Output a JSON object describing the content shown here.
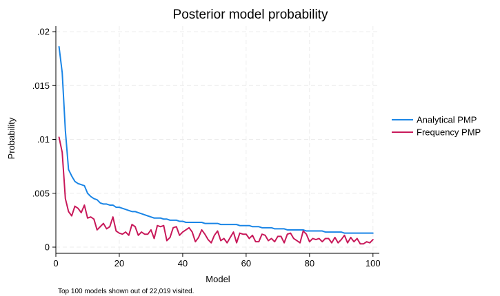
{
  "chart_data": {
    "type": "line",
    "title": "Posterior model probability",
    "xlabel": "Model",
    "ylabel": "Probability",
    "note": "Top 100 models shown out of 22,019 visited.",
    "xlim": [
      0,
      102
    ],
    "ylim": [
      0,
      0.02
    ],
    "xticks": [
      0,
      20,
      40,
      60,
      80,
      100
    ],
    "xtick_labels": [
      "0",
      "20",
      "40",
      "60",
      "80",
      "100"
    ],
    "yticks": [
      0,
      0.005,
      0.01,
      0.015,
      0.02
    ],
    "ytick_labels": [
      "0",
      ".005",
      ".01",
      ".015",
      ".02"
    ],
    "grid": true,
    "legend_position": "right",
    "series": [
      {
        "name": "Analytical PMP",
        "color": "#1a85e6",
        "values": [
          0.0186,
          0.0162,
          0.0108,
          0.0072,
          0.0066,
          0.0061,
          0.0059,
          0.0058,
          0.0057,
          0.005,
          0.0047,
          0.0045,
          0.0044,
          0.0041,
          0.004,
          0.004,
          0.0039,
          0.0039,
          0.0037,
          0.0037,
          0.0036,
          0.0035,
          0.0034,
          0.0033,
          0.0033,
          0.0032,
          0.0031,
          0.003,
          0.0029,
          0.0028,
          0.0027,
          0.0027,
          0.0027,
          0.0026,
          0.0026,
          0.0025,
          0.0025,
          0.0025,
          0.0024,
          0.0024,
          0.0023,
          0.0023,
          0.0023,
          0.0023,
          0.0023,
          0.0023,
          0.0022,
          0.0022,
          0.0022,
          0.0022,
          0.0022,
          0.0021,
          0.0021,
          0.0021,
          0.0021,
          0.0021,
          0.0021,
          0.002,
          0.002,
          0.002,
          0.002,
          0.0019,
          0.0019,
          0.0019,
          0.0018,
          0.0018,
          0.0018,
          0.0018,
          0.0017,
          0.0017,
          0.0017,
          0.0017,
          0.0016,
          0.0016,
          0.0016,
          0.0016,
          0.0016,
          0.0016,
          0.0015,
          0.0015,
          0.0015,
          0.0015,
          0.0015,
          0.0015,
          0.0014,
          0.0014,
          0.0014,
          0.0014,
          0.0014,
          0.0014,
          0.0013,
          0.0013,
          0.0013,
          0.0013,
          0.0013,
          0.0013,
          0.0013,
          0.0013,
          0.0013,
          0.0013
        ]
      },
      {
        "name": "Frequency PMP",
        "color": "#c8195a",
        "values": [
          0.0102,
          0.0088,
          0.0045,
          0.0033,
          0.0029,
          0.0038,
          0.0036,
          0.0032,
          0.0039,
          0.0027,
          0.0028,
          0.0026,
          0.0016,
          0.0019,
          0.0022,
          0.0017,
          0.0019,
          0.0028,
          0.0015,
          0.0013,
          0.0012,
          0.0014,
          0.0011,
          0.0021,
          0.0019,
          0.0011,
          0.0014,
          0.0012,
          0.0012,
          0.0016,
          0.0008,
          0.002,
          0.0019,
          0.002,
          0.0006,
          0.0009,
          0.0018,
          0.0019,
          0.0011,
          0.0014,
          0.0016,
          0.0018,
          0.0014,
          0.0005,
          0.0009,
          0.0016,
          0.0012,
          0.0007,
          0.0004,
          0.0011,
          0.0015,
          0.0006,
          0.0008,
          0.0004,
          0.0009,
          0.0014,
          0.0004,
          0.0013,
          0.0012,
          0.0012,
          0.0008,
          0.0011,
          0.0005,
          0.0005,
          0.0012,
          0.0011,
          0.0006,
          0.0008,
          0.0005,
          0.001,
          0.001,
          0.0004,
          0.0012,
          0.0013,
          0.0008,
          0.0006,
          0.0004,
          0.0015,
          0.0012,
          0.0005,
          0.0008,
          0.0007,
          0.0008,
          0.0005,
          0.0008,
          0.0008,
          0.0004,
          0.0009,
          0.0004,
          0.0007,
          0.0011,
          0.0004,
          0.0009,
          0.0005,
          0.0008,
          0.0003,
          0.0003,
          0.0005,
          0.0004,
          0.0007
        ]
      }
    ]
  }
}
